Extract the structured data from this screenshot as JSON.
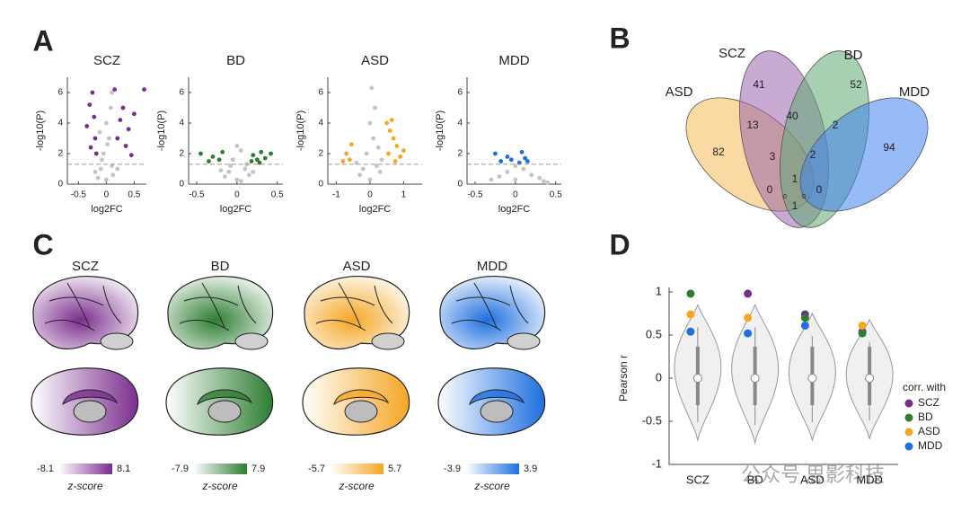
{
  "panel_labels": [
    "A",
    "B",
    "C",
    "D"
  ],
  "watermark": "公众号 思影科技",
  "chart_data": [
    {
      "type": "scatter",
      "title": "SCZ",
      "xlabel": "log2FC",
      "ylabel": "-log10(P)",
      "xlim": [
        -0.7,
        0.72
      ],
      "ylim": [
        0,
        7
      ],
      "xticks": [
        -0.5,
        0,
        0.5
      ],
      "yticks": [
        0,
        2,
        4,
        6
      ],
      "threshold": 1.3,
      "series": [
        {
          "color": "#c4c4c4",
          "x": [
            0,
            -0.1,
            0.1,
            -0.05,
            0.05,
            0,
            0.08,
            -0.08,
            0.12,
            -0.15,
            0.2,
            -0.2,
            0.02,
            -0.12,
            0.1
          ],
          "values": [
            0.3,
            1.0,
            1.2,
            2.0,
            3.0,
            4.0,
            5.0,
            1.6,
            0.6,
            0.4,
            1.0,
            0.8,
            2.6,
            3.4,
            6.0
          ]
        },
        {
          "color": "#7b2d8e",
          "x": [
            -0.25,
            -0.3,
            -0.22,
            -0.35,
            -0.2,
            -0.28,
            -0.18,
            0.15,
            0.3,
            0.25,
            0.4,
            0.2,
            0.35,
            0.5,
            0.68,
            0.45
          ],
          "values": [
            6.0,
            5.2,
            4.4,
            3.8,
            3.0,
            2.4,
            2.0,
            6.2,
            5.0,
            4.2,
            3.6,
            3.0,
            2.5,
            4.6,
            6.2,
            1.9
          ]
        }
      ]
    },
    {
      "type": "scatter",
      "title": "BD",
      "xlabel": "log2FC",
      "ylabel": "-log10(P)",
      "xlim": [
        -0.6,
        0.57
      ],
      "ylim": [
        0,
        7
      ],
      "xticks": [
        -0.5,
        0,
        0.5
      ],
      "yticks": [
        0,
        2,
        4,
        6
      ],
      "threshold": 1.3,
      "series": [
        {
          "color": "#c4c4c4",
          "x": [
            0,
            -0.1,
            0.1,
            -0.05,
            0.05,
            0,
            -0.15,
            0.15,
            0.05,
            -0.08,
            0.12,
            -0.2,
            0.2
          ],
          "values": [
            0.3,
            0.8,
            1.0,
            1.6,
            2.2,
            2.5,
            0.5,
            0.6,
            0.2,
            1.2,
            1.3,
            0.9,
            0.8
          ]
        },
        {
          "color": "#2e7d32",
          "x": [
            -0.3,
            -0.22,
            -0.35,
            -0.18,
            -0.45,
            0.2,
            0.25,
            0.3,
            0.35,
            0.18,
            0.42,
            0.28
          ],
          "values": [
            1.8,
            1.6,
            1.5,
            2.1,
            2.0,
            1.9,
            1.6,
            2.1,
            1.7,
            1.5,
            2.0,
            1.4
          ]
        }
      ]
    },
    {
      "type": "scatter",
      "title": "ASD",
      "xlabel": "log2FC",
      "ylabel": "-log10(P)",
      "xlim": [
        -1.25,
        1.55
      ],
      "ylim": [
        0,
        7
      ],
      "xticks": [
        -1,
        0,
        1
      ],
      "yticks": [
        0,
        2,
        4,
        6
      ],
      "threshold": 1.3,
      "series": [
        {
          "color": "#c4c4c4",
          "x": [
            0,
            -0.2,
            0.2,
            -0.1,
            0.1,
            0,
            0.15,
            0.05,
            -0.3,
            0.3,
            -0.4,
            0.35,
            0.25
          ],
          "values": [
            0.3,
            1.0,
            1.2,
            2.0,
            3.0,
            4.0,
            5.0,
            6.3,
            0.6,
            0.8,
            1.4,
            1.6,
            2.4
          ]
        },
        {
          "color": "#f5a623",
          "x": [
            -0.7,
            -0.55,
            -0.6,
            -0.8,
            0.5,
            0.6,
            0.7,
            0.8,
            0.55,
            0.9,
            0.65,
            0.75,
            1.0
          ],
          "values": [
            2.0,
            2.6,
            1.6,
            1.5,
            4.0,
            3.5,
            3.0,
            2.5,
            2.0,
            1.8,
            4.2,
            1.5,
            2.2
          ]
        }
      ]
    },
    {
      "type": "scatter",
      "title": "MDD",
      "xlabel": "log2FC",
      "ylabel": "-log10(P)",
      "xlim": [
        -0.6,
        0.57
      ],
      "ylim": [
        0,
        7
      ],
      "xticks": [
        -0.5,
        0,
        0.5
      ],
      "yticks": [
        0,
        2,
        4,
        6
      ],
      "threshold": 1.3,
      "series": [
        {
          "color": "#c4c4c4",
          "x": [
            0,
            -0.1,
            0.1,
            -0.2,
            0.2,
            0.3,
            0.35,
            0.4,
            -0.3,
            0
          ],
          "values": [
            0.3,
            0.8,
            1.0,
            0.5,
            0.6,
            0.4,
            0.2,
            0.1,
            0.3,
            1.2
          ]
        },
        {
          "color": "#1e6fe0",
          "x": [
            -0.25,
            -0.1,
            -0.18,
            0.08,
            0.12,
            0.15,
            -0.05,
            0.05
          ],
          "values": [
            2.0,
            1.8,
            1.5,
            2.1,
            1.7,
            1.5,
            1.6,
            1.4
          ]
        }
      ]
    },
    {
      "type": "venn",
      "sets": [
        {
          "name": "ASD",
          "color": "#f7b955"
        },
        {
          "name": "SCZ",
          "color": "#9a64ad"
        },
        {
          "name": "BD",
          "color": "#5fa872"
        },
        {
          "name": "MDD",
          "color": "#3f84ee"
        }
      ],
      "regions": [
        41,
        52,
        13,
        40,
        2,
        82,
        94,
        3,
        2,
        1,
        0,
        0,
        1,
        0,
        0
      ]
    },
    {
      "type": "brainmap",
      "colorbar_label": "z-score",
      "maps": [
        {
          "title": "SCZ",
          "color": "#7b2d8e",
          "range": [
            -8.1,
            8.1
          ]
        },
        {
          "title": "BD",
          "color": "#2e7d32",
          "range": [
            -7.9,
            7.9
          ]
        },
        {
          "title": "ASD",
          "color": "#f5a623",
          "range": [
            -5.7,
            5.7
          ]
        },
        {
          "title": "MDD",
          "color": "#1e6fe0",
          "range": [
            -3.9,
            3.9
          ]
        }
      ]
    },
    {
      "type": "violin",
      "ylabel": "Pearson r",
      "legend_title": "corr. with",
      "categories": [
        "SCZ",
        "BD",
        "ASD",
        "MDD"
      ],
      "ylim": [
        -1,
        1
      ],
      "yticks": [
        1,
        0.5,
        0,
        -0.5,
        -1
      ],
      "lows": [
        -0.72,
        -0.75,
        -0.72,
        -0.7
      ],
      "highs": [
        0.85,
        0.85,
        0.75,
        0.68
      ],
      "medians": [
        0,
        0,
        0,
        0
      ],
      "series": [
        {
          "name": "SCZ",
          "color": "#7b2d8e",
          "values": [
            null,
            0.98,
            0.74,
            0.54
          ]
        },
        {
          "name": "BD",
          "color": "#2e7d32",
          "values": [
            0.98,
            null,
            0.7,
            0.52
          ]
        },
        {
          "name": "ASD",
          "color": "#f5a623",
          "values": [
            0.74,
            0.7,
            null,
            0.61
          ]
        },
        {
          "name": "MDD",
          "color": "#1e6fe0",
          "values": [
            0.54,
            0.52,
            0.61,
            null
          ]
        }
      ]
    }
  ]
}
